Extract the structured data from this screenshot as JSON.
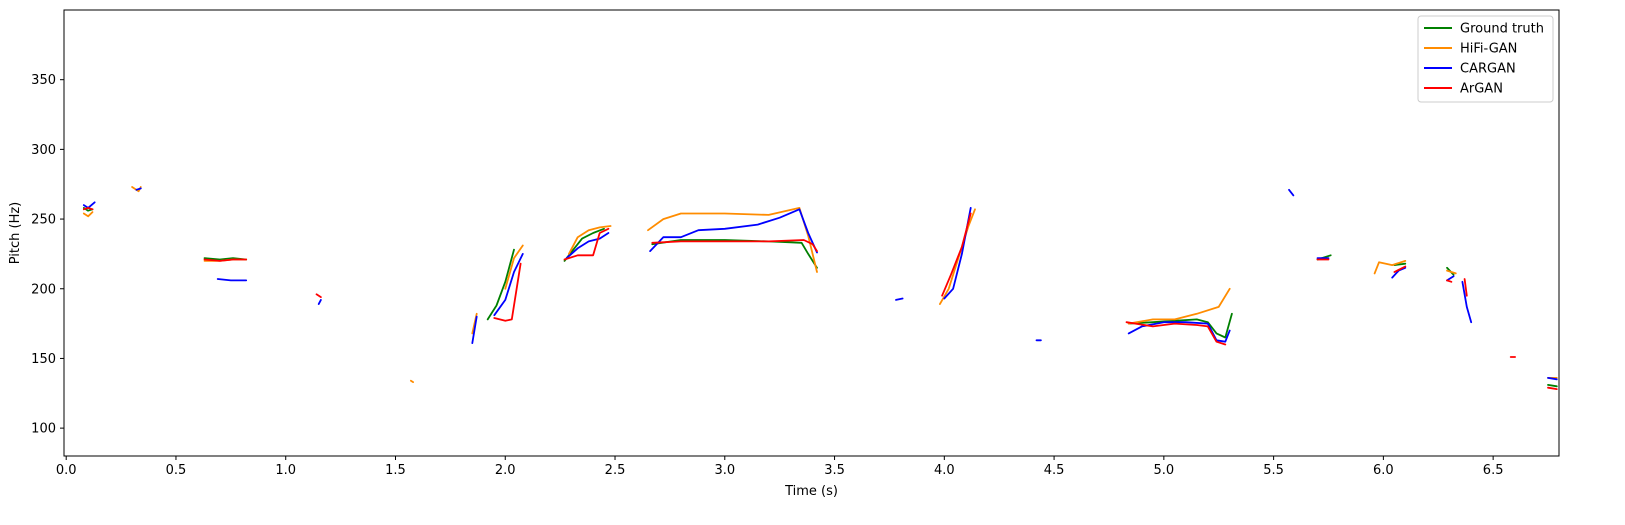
{
  "chart_data": {
    "type": "line",
    "xlabel": "Time (s)",
    "ylabel": "Pitch (Hz)",
    "xlim": [
      -0.01,
      6.8
    ],
    "ylim": [
      80,
      400
    ],
    "xticks": [
      0.0,
      0.5,
      1.0,
      1.5,
      2.0,
      2.5,
      3.0,
      3.5,
      4.0,
      4.5,
      5.0,
      5.5,
      6.0,
      6.5
    ],
    "xtick_labels": [
      "0.0",
      "0.5",
      "1.0",
      "1.5",
      "2.0",
      "2.5",
      "3.0",
      "3.5",
      "4.0",
      "4.5",
      "5.0",
      "5.5",
      "6.0",
      "6.5"
    ],
    "yticks": [
      100,
      150,
      200,
      250,
      300,
      350
    ],
    "ytick_labels": [
      "100",
      "150",
      "200",
      "250",
      "300",
      "350"
    ],
    "grid": false,
    "legend_position": "top-right",
    "series": [
      {
        "name": "Ground truth",
        "color": "#008000",
        "segments": [
          [
            [
              0.08,
              258
            ],
            [
              0.1,
              256
            ],
            [
              0.12,
              257
            ]
          ],
          [
            [
              0.63,
              222
            ],
            [
              0.7,
              221
            ],
            [
              0.76,
              222
            ],
            [
              0.82,
              221
            ]
          ],
          [
            [
              1.92,
              178
            ],
            [
              1.96,
              188
            ],
            [
              2.0,
              205
            ],
            [
              2.04,
              228
            ]
          ],
          [
            [
              2.27,
              220
            ],
            [
              2.31,
              228
            ],
            [
              2.35,
              236
            ],
            [
              2.4,
              240
            ],
            [
              2.45,
              243
            ]
          ],
          [
            [
              2.67,
              232
            ],
            [
              2.8,
              235
            ],
            [
              3.0,
              235
            ],
            [
              3.2,
              234
            ],
            [
              3.35,
              233
            ],
            [
              3.38,
              225
            ],
            [
              3.42,
              215
            ]
          ],
          [
            [
              4.84,
              175
            ],
            [
              4.95,
              176
            ],
            [
              5.05,
              177
            ],
            [
              5.15,
              178
            ],
            [
              5.2,
              176
            ],
            [
              5.24,
              168
            ],
            [
              5.28,
              165
            ],
            [
              5.31,
              182
            ]
          ],
          [
            [
              5.7,
              221
            ],
            [
              5.76,
              224
            ]
          ],
          [
            [
              6.05,
              217
            ],
            [
              6.1,
              218
            ]
          ],
          [
            [
              6.29,
              215
            ],
            [
              6.32,
              210
            ]
          ],
          [
            [
              6.75,
              131
            ],
            [
              6.79,
              130
            ]
          ]
        ]
      },
      {
        "name": "HiFi-GAN",
        "color": "#ff8c00",
        "segments": [
          [
            [
              0.08,
              254
            ],
            [
              0.1,
              252
            ],
            [
              0.12,
              255
            ]
          ],
          [
            [
              0.3,
              273
            ],
            [
              0.33,
              270
            ],
            [
              0.34,
              273
            ]
          ],
          [
            [
              0.63,
              220
            ],
            [
              0.7,
              220
            ],
            [
              0.76,
              221
            ],
            [
              0.82,
              221
            ]
          ],
          [
            [
              1.57,
              134
            ],
            [
              1.58,
              133
            ]
          ],
          [
            [
              1.85,
              168
            ],
            [
              1.87,
              182
            ]
          ],
          [
            [
              2.0,
              200
            ],
            [
              2.04,
              222
            ],
            [
              2.08,
              231
            ]
          ],
          [
            [
              2.29,
              225
            ],
            [
              2.33,
              237
            ],
            [
              2.38,
              242
            ],
            [
              2.43,
              244
            ],
            [
              2.48,
              245
            ]
          ],
          [
            [
              2.65,
              242
            ],
            [
              2.72,
              250
            ],
            [
              2.8,
              254
            ],
            [
              3.0,
              254
            ],
            [
              3.2,
              253
            ],
            [
              3.34,
              258
            ],
            [
              3.38,
              238
            ],
            [
              3.42,
              212
            ]
          ],
          [
            [
              3.98,
              189
            ],
            [
              4.02,
              200
            ],
            [
              4.07,
              225
            ],
            [
              4.11,
              245
            ],
            [
              4.14,
              257
            ]
          ],
          [
            [
              4.84,
              175
            ],
            [
              4.95,
              178
            ],
            [
              5.05,
              178
            ],
            [
              5.15,
              182
            ],
            [
              5.25,
              187
            ],
            [
              5.3,
              200
            ]
          ],
          [
            [
              5.96,
              211
            ],
            [
              5.98,
              219
            ],
            [
              6.04,
              217
            ],
            [
              6.1,
              220
            ]
          ],
          [
            [
              6.29,
              213
            ],
            [
              6.33,
              211
            ]
          ],
          [
            [
              6.75,
              136
            ],
            [
              6.79,
              136
            ]
          ]
        ]
      },
      {
        "name": "CARGAN",
        "color": "#0000ff",
        "segments": [
          [
            [
              0.08,
              260
            ],
            [
              0.1,
              258
            ],
            [
              0.13,
              262
            ]
          ],
          [
            [
              0.32,
              271
            ],
            [
              0.34,
              272
            ]
          ],
          [
            [
              0.69,
              207
            ],
            [
              0.75,
              206
            ],
            [
              0.82,
              206
            ]
          ],
          [
            [
              1.15,
              189
            ],
            [
              1.16,
              192
            ]
          ],
          [
            [
              1.85,
              161
            ],
            [
              1.87,
              180
            ]
          ],
          [
            [
              1.95,
              181
            ],
            [
              2.0,
              192
            ],
            [
              2.04,
              212
            ],
            [
              2.08,
              225
            ]
          ],
          [
            [
              2.28,
              222
            ],
            [
              2.33,
              229
            ],
            [
              2.38,
              234
            ],
            [
              2.43,
              236
            ],
            [
              2.47,
              240
            ]
          ],
          [
            [
              2.66,
              227
            ],
            [
              2.72,
              237
            ],
            [
              2.8,
              237
            ],
            [
              2.88,
              242
            ],
            [
              3.0,
              243
            ],
            [
              3.15,
              246
            ],
            [
              3.25,
              251
            ],
            [
              3.34,
              257
            ],
            [
              3.38,
              240
            ],
            [
              3.42,
              226
            ]
          ],
          [
            [
              3.78,
              192
            ],
            [
              3.81,
              193
            ]
          ],
          [
            [
              4.0,
              193
            ],
            [
              4.04,
              200
            ],
            [
              4.08,
              225
            ],
            [
              4.12,
              258
            ]
          ],
          [
            [
              4.42,
              163
            ],
            [
              4.44,
              163
            ]
          ],
          [
            [
              4.84,
              168
            ],
            [
              4.9,
              173
            ],
            [
              5.0,
              176
            ],
            [
              5.1,
              176
            ],
            [
              5.2,
              175
            ],
            [
              5.24,
              163
            ],
            [
              5.28,
              162
            ],
            [
              5.3,
              170
            ]
          ],
          [
            [
              5.57,
              271
            ],
            [
              5.59,
              267
            ]
          ],
          [
            [
              5.7,
              222
            ],
            [
              5.75,
              222
            ]
          ],
          [
            [
              6.04,
              208
            ],
            [
              6.07,
              213
            ],
            [
              6.1,
              215
            ]
          ],
          [
            [
              6.29,
              206
            ],
            [
              6.32,
              209
            ]
          ],
          [
            [
              6.36,
              205
            ],
            [
              6.38,
              187
            ],
            [
              6.4,
              176
            ]
          ],
          [
            [
              6.75,
              136
            ],
            [
              6.79,
              135
            ]
          ]
        ]
      },
      {
        "name": "ArGAN",
        "color": "#ff0000",
        "segments": [
          [
            [
              0.08,
              257
            ],
            [
              0.1,
              258
            ],
            [
              0.12,
              257
            ]
          ],
          [
            [
              0.63,
              221
            ],
            [
              0.7,
              220
            ],
            [
              0.76,
              221
            ],
            [
              0.82,
              221
            ]
          ],
          [
            [
              1.14,
              196
            ],
            [
              1.16,
              194
            ]
          ],
          [
            [
              1.95,
              179
            ],
            [
              2.0,
              177
            ],
            [
              2.03,
              178
            ],
            [
              2.07,
              218
            ]
          ],
          [
            [
              2.27,
              221
            ],
            [
              2.33,
              224
            ],
            [
              2.4,
              224
            ],
            [
              2.43,
              240
            ],
            [
              2.47,
              243
            ]
          ],
          [
            [
              2.67,
              233
            ],
            [
              2.8,
              234
            ],
            [
              3.0,
              234
            ],
            [
              3.2,
              234
            ],
            [
              3.36,
              235
            ],
            [
              3.4,
              232
            ],
            [
              3.42,
              227
            ]
          ],
          [
            [
              3.99,
              195
            ],
            [
              4.03,
              210
            ],
            [
              4.08,
              230
            ],
            [
              4.12,
              254
            ]
          ],
          [
            [
              4.83,
              176
            ],
            [
              4.95,
              173
            ],
            [
              5.05,
              175
            ],
            [
              5.15,
              174
            ],
            [
              5.2,
              173
            ],
            [
              5.24,
              162
            ],
            [
              5.28,
              160
            ]
          ],
          [
            [
              5.7,
              221
            ],
            [
              5.75,
              221
            ]
          ],
          [
            [
              6.05,
              212
            ],
            [
              6.1,
              216
            ]
          ],
          [
            [
              6.29,
              206
            ],
            [
              6.31,
              205
            ]
          ],
          [
            [
              6.37,
              207
            ],
            [
              6.38,
              195
            ]
          ],
          [
            [
              6.58,
              151
            ],
            [
              6.6,
              151
            ]
          ],
          [
            [
              6.75,
              129
            ],
            [
              6.79,
              128
            ]
          ]
        ]
      }
    ]
  }
}
